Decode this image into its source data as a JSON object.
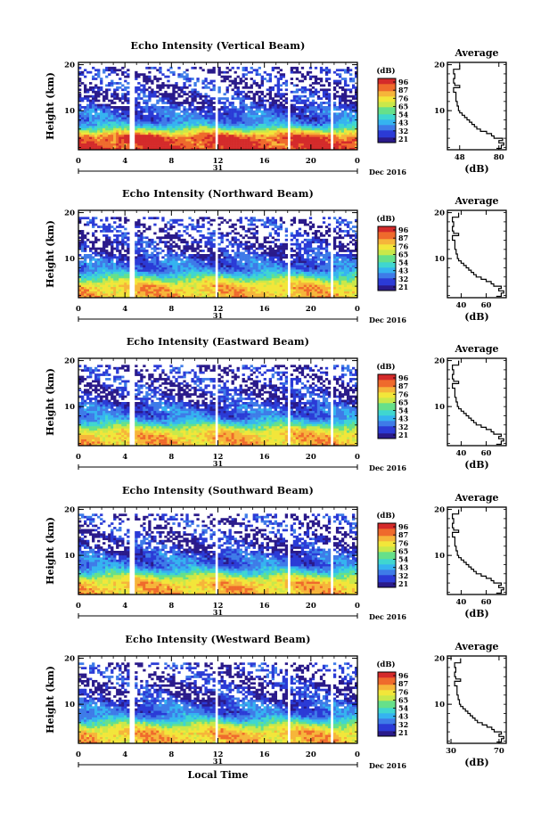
{
  "chart_data": [
    {
      "type": "heatmap",
      "title": "Echo Intensity (Vertical Beam)",
      "xlabel": "",
      "ylabel": "Height (km)",
      "x_ticks": [
        "0",
        "4",
        "8",
        "12",
        "16",
        "20",
        "0"
      ],
      "y_ticks": [
        "10",
        "20"
      ],
      "xlim": [
        0,
        24
      ],
      "ylim": [
        1.5,
        20.5
      ],
      "date_marker": "31",
      "date_label": "Dec 2016",
      "colorbar": {
        "label": "(dB)",
        "ticks": [
          "96",
          "87",
          "76",
          "65",
          "54",
          "43",
          "32",
          "21"
        ]
      },
      "data_gaps_hours": [
        [
          4.5,
          4.9
        ],
        [
          11.8,
          12.1
        ],
        [
          17.9,
          18.3
        ],
        [
          21.6,
          21.9
        ]
      ],
      "echo_top_km": 19.5,
      "profile": {
        "title": "Average",
        "xlabel": "(dB)",
        "x_ticks": [
          "48",
          "80"
        ],
        "x_tick_values": [
          48,
          80
        ],
        "xlim": [
          38,
          86
        ],
        "y_ticks": [
          "10",
          "20"
        ],
        "heights_km": [
          1.8,
          2.5,
          3.0,
          3.5,
          4.0,
          4.5,
          5.0,
          5.5,
          6.0,
          6.5,
          7.0,
          7.5,
          8.0,
          8.5,
          9.0,
          9.5,
          10.0,
          11.0,
          12.0,
          13.0,
          14.0,
          15.0,
          15.5,
          16.0,
          17.0,
          18.0,
          19.0,
          20.0
        ],
        "values_db": [
          78,
          82,
          84,
          80,
          83,
          76,
          74,
          70,
          65,
          62,
          60,
          58,
          56,
          54,
          52,
          50,
          48,
          47,
          46,
          45,
          45,
          43,
          48,
          44,
          43,
          44,
          43,
          48
        ]
      }
    },
    {
      "type": "heatmap",
      "title": "Echo Intensity (Northward Beam)",
      "xlabel": "",
      "ylabel": "Height (km)",
      "x_ticks": [
        "0",
        "4",
        "8",
        "12",
        "16",
        "20",
        "0"
      ],
      "y_ticks": [
        "10",
        "20"
      ],
      "xlim": [
        0,
        24
      ],
      "ylim": [
        1.5,
        20.5
      ],
      "date_marker": "31",
      "date_label": "Dec 2016",
      "colorbar": {
        "label": "(dB)",
        "ticks": [
          "96",
          "87",
          "76",
          "65",
          "54",
          "43",
          "32",
          "21"
        ]
      },
      "data_gaps_hours": [
        [
          4.5,
          4.9
        ],
        [
          11.8,
          12.1
        ],
        [
          17.9,
          18.3
        ],
        [
          21.6,
          21.9
        ]
      ],
      "echo_top_km": 19.0,
      "profile": {
        "title": "Average",
        "xlabel": "(dB)",
        "x_ticks": [
          "40",
          "60"
        ],
        "x_tick_values": [
          40,
          60
        ],
        "xlim": [
          29,
          76
        ],
        "y_ticks": [
          "10",
          "20"
        ],
        "heights_km": [
          1.8,
          2.5,
          3.0,
          3.5,
          4.0,
          4.5,
          5.0,
          5.5,
          6.0,
          6.5,
          7.0,
          7.5,
          8.0,
          8.5,
          9.0,
          9.5,
          10.0,
          11.0,
          12.0,
          13.0,
          14.0,
          15.0,
          15.5,
          16.0,
          17.0,
          18.0,
          19.0,
          20.0
        ],
        "values_db": [
          68,
          72,
          74,
          70,
          72,
          66,
          64,
          60,
          56,
          52,
          50,
          48,
          46,
          44,
          42,
          40,
          38,
          37,
          36,
          35,
          35,
          33,
          38,
          34,
          33,
          34,
          33,
          38
        ]
      }
    },
    {
      "type": "heatmap",
      "title": "Echo Intensity (Eastward Beam)",
      "xlabel": "",
      "ylabel": "Height (km)",
      "x_ticks": [
        "0",
        "4",
        "8",
        "12",
        "16",
        "20",
        "0"
      ],
      "y_ticks": [
        "10",
        "20"
      ],
      "xlim": [
        0,
        24
      ],
      "ylim": [
        1.5,
        20.5
      ],
      "date_marker": "31",
      "date_label": "Dec 2016",
      "colorbar": {
        "label": "(dB)",
        "ticks": [
          "96",
          "87",
          "76",
          "65",
          "54",
          "43",
          "32",
          "21"
        ]
      },
      "data_gaps_hours": [
        [
          4.5,
          4.9
        ],
        [
          11.8,
          12.1
        ],
        [
          17.9,
          18.3
        ],
        [
          21.6,
          21.9
        ]
      ],
      "echo_top_km": 19.0,
      "profile": {
        "title": "Average",
        "xlabel": "(dB)",
        "x_ticks": [
          "40",
          "60"
        ],
        "x_tick_values": [
          40,
          60
        ],
        "xlim": [
          29,
          76
        ],
        "y_ticks": [
          "10",
          "20"
        ],
        "heights_km": [
          1.8,
          2.5,
          3.0,
          3.5,
          4.0,
          4.5,
          5.0,
          5.5,
          6.0,
          6.5,
          7.0,
          7.5,
          8.0,
          8.5,
          9.0,
          9.5,
          10.0,
          11.0,
          12.0,
          13.0,
          14.0,
          15.0,
          15.5,
          16.0,
          17.0,
          18.0,
          19.0,
          20.0
        ],
        "values_db": [
          68,
          72,
          74,
          70,
          72,
          66,
          64,
          60,
          56,
          52,
          50,
          48,
          46,
          44,
          42,
          40,
          38,
          37,
          36,
          35,
          35,
          33,
          38,
          34,
          33,
          34,
          33,
          38
        ]
      }
    },
    {
      "type": "heatmap",
      "title": "Echo Intensity (Southward Beam)",
      "xlabel": "",
      "ylabel": "Height (km)",
      "x_ticks": [
        "0",
        "4",
        "8",
        "12",
        "16",
        "20",
        "0"
      ],
      "y_ticks": [
        "10",
        "20"
      ],
      "xlim": [
        0,
        24
      ],
      "ylim": [
        1.5,
        20.5
      ],
      "date_marker": "31",
      "date_label": "Dec 2016",
      "colorbar": {
        "label": "(dB)",
        "ticks": [
          "96",
          "87",
          "76",
          "65",
          "54",
          "43",
          "32",
          "21"
        ]
      },
      "data_gaps_hours": [
        [
          4.5,
          4.9
        ],
        [
          11.8,
          12.1
        ],
        [
          17.9,
          18.3
        ],
        [
          21.6,
          21.9
        ]
      ],
      "echo_top_km": 19.0,
      "profile": {
        "title": "Average",
        "xlabel": "(dB)",
        "x_ticks": [
          "40",
          "60"
        ],
        "x_tick_values": [
          40,
          60
        ],
        "xlim": [
          29,
          76
        ],
        "y_ticks": [
          "10",
          "20"
        ],
        "heights_km": [
          1.8,
          2.5,
          3.0,
          3.5,
          4.0,
          4.5,
          5.0,
          5.5,
          6.0,
          6.5,
          7.0,
          7.5,
          8.0,
          8.5,
          9.0,
          9.5,
          10.0,
          11.0,
          12.0,
          13.0,
          14.0,
          15.0,
          15.5,
          16.0,
          17.0,
          18.0,
          19.0,
          20.0
        ],
        "values_db": [
          68,
          72,
          74,
          70,
          72,
          66,
          64,
          60,
          56,
          52,
          50,
          48,
          46,
          44,
          42,
          40,
          38,
          37,
          36,
          35,
          35,
          33,
          38,
          34,
          33,
          34,
          33,
          38
        ]
      }
    },
    {
      "type": "heatmap",
      "title": "Echo Intensity (Westward Beam)",
      "xlabel": "Local Time",
      "ylabel": "Height (km)",
      "x_ticks": [
        "0",
        "4",
        "8",
        "12",
        "16",
        "20",
        "0"
      ],
      "y_ticks": [
        "10",
        "20"
      ],
      "xlim": [
        0,
        24
      ],
      "ylim": [
        1.5,
        20.5
      ],
      "date_marker": "31",
      "date_label": "Dec 2016",
      "colorbar": {
        "label": "(dB)",
        "ticks": [
          "96",
          "87",
          "76",
          "65",
          "54",
          "43",
          "32",
          "21"
        ]
      },
      "data_gaps_hours": [
        [
          4.5,
          4.9
        ],
        [
          11.8,
          12.1
        ],
        [
          17.9,
          18.3
        ],
        [
          21.6,
          21.9
        ]
      ],
      "echo_top_km": 19.0,
      "profile": {
        "title": "Average",
        "xlabel": "(dB)",
        "x_ticks": [
          "30",
          "70"
        ],
        "x_tick_values": [
          30,
          70
        ],
        "xlim": [
          27,
          76
        ],
        "y_ticks": [
          "10",
          "20"
        ],
        "heights_km": [
          1.8,
          2.5,
          3.0,
          3.5,
          4.0,
          4.5,
          5.0,
          5.5,
          6.0,
          6.5,
          7.0,
          7.5,
          8.0,
          8.5,
          9.0,
          9.5,
          10.0,
          11.0,
          12.0,
          13.0,
          14.0,
          15.0,
          15.5,
          16.0,
          17.0,
          18.0,
          19.0,
          20.0
        ],
        "values_db": [
          68,
          72,
          74,
          70,
          72,
          66,
          64,
          60,
          56,
          52,
          50,
          48,
          46,
          44,
          42,
          40,
          38,
          37,
          36,
          35,
          35,
          33,
          38,
          34,
          33,
          34,
          33,
          38
        ]
      }
    }
  ],
  "colormap": [
    "#2a1a8a",
    "#2b3bd6",
    "#3e7be8",
    "#35b3f0",
    "#3fd6d0",
    "#66e08a",
    "#c9e84a",
    "#f2e63a",
    "#f6b53a",
    "#ef6a2c",
    "#d42a2a"
  ]
}
